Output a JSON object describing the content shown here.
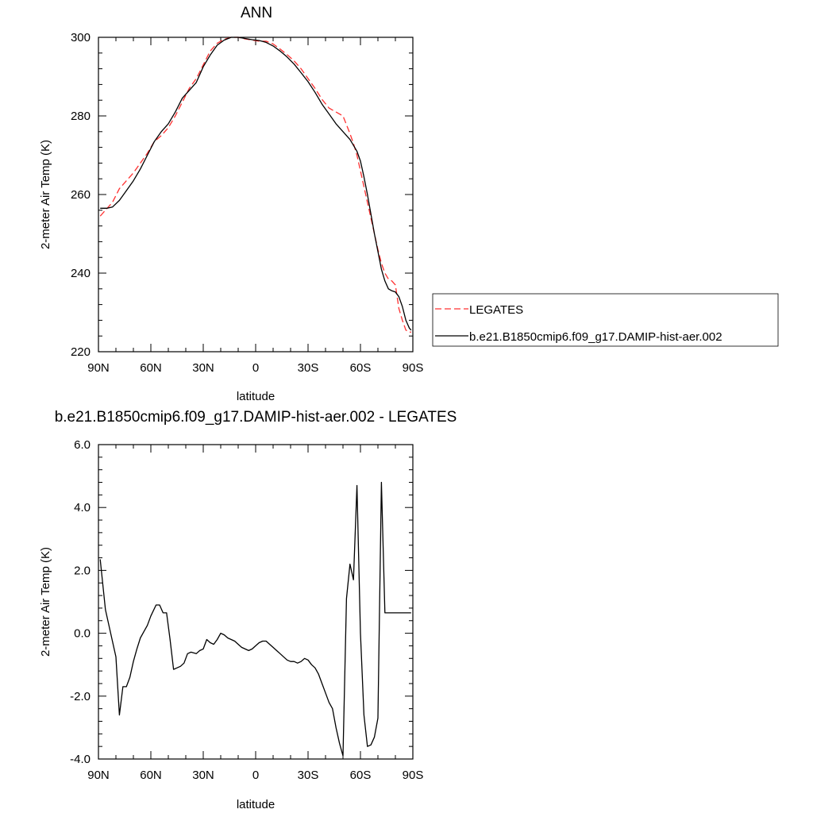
{
  "chart_data": [
    {
      "type": "line",
      "title": "ANN",
      "xlabel": "latitude",
      "ylabel": "2-meter Air Temp (K)",
      "xlim": [
        90,
        -90
      ],
      "ylim": [
        220,
        300
      ],
      "x_ticks": [
        {
          "value": 90,
          "label": "90N"
        },
        {
          "value": 60,
          "label": "60N"
        },
        {
          "value": 30,
          "label": "30N"
        },
        {
          "value": 0,
          "label": "0"
        },
        {
          "value": -30,
          "label": "30S"
        },
        {
          "value": -60,
          "label": "60S"
        },
        {
          "value": -90,
          "label": "90S"
        }
      ],
      "y_ticks": [
        {
          "value": 220,
          "label": "220"
        },
        {
          "value": 240,
          "label": "240"
        },
        {
          "value": 260,
          "label": "260"
        },
        {
          "value": 280,
          "label": "280"
        },
        {
          "value": 300,
          "label": "300"
        }
      ],
      "legend_position": "right",
      "series": [
        {
          "name": "LEGATES",
          "color": "#ff3030",
          "dash": "dashed",
          "x": [
            89,
            85,
            82,
            78,
            74,
            70,
            66,
            62,
            58,
            54,
            50,
            46,
            42,
            38,
            34,
            30,
            26,
            22,
            18,
            14,
            10,
            6,
            2,
            -2,
            -6,
            -10,
            -14,
            -18,
            -22,
            -26,
            -30,
            -34,
            -38,
            -42,
            -46,
            -50,
            -54,
            -56,
            -58,
            -60,
            -62,
            -64,
            -66,
            -68,
            -70,
            -72,
            -74,
            -76,
            -78,
            -80,
            -82,
            -84,
            -86,
            -88,
            -89
          ],
          "values": [
            254.5,
            256.5,
            258,
            261.5,
            263.5,
            265.5,
            268,
            270.5,
            273.5,
            275,
            277,
            280,
            283.5,
            287,
            289.5,
            293,
            296.5,
            298.5,
            299.5,
            300,
            300,
            299.6,
            299.3,
            299,
            299,
            298.3,
            297,
            295.6,
            294,
            292,
            289.5,
            287,
            284.2,
            282,
            281,
            280,
            275.5,
            273,
            270,
            266,
            262,
            258,
            254,
            250,
            246,
            242.5,
            240,
            238.5,
            238,
            237,
            231,
            228,
            225.5,
            225,
            225
          ]
        },
        {
          "name": "b.e21.B1850cmip6.f09_g17.DAMIP-hist-aer.002",
          "color": "#000000",
          "dash": "solid",
          "x": [
            89,
            85,
            82,
            78,
            74,
            70,
            66,
            62,
            58,
            54,
            50,
            46,
            42,
            38,
            34,
            30,
            26,
            22,
            18,
            14,
            10,
            6,
            2,
            -2,
            -6,
            -10,
            -14,
            -18,
            -22,
            -26,
            -30,
            -34,
            -38,
            -42,
            -46,
            -50,
            -54,
            -56,
            -58,
            -60,
            -62,
            -64,
            -66,
            -68,
            -70,
            -72,
            -74,
            -76,
            -78,
            -80,
            -82,
            -84,
            -86,
            -88,
            -89
          ],
          "values": [
            256.5,
            256.5,
            256.8,
            258.5,
            261,
            263.5,
            266.5,
            270,
            273.5,
            276,
            278,
            281,
            284.5,
            286.5,
            288.5,
            292.5,
            295.5,
            298,
            299.3,
            300,
            300,
            299.7,
            299.4,
            299.2,
            298.7,
            297.8,
            296.5,
            295,
            293.2,
            291,
            288.7,
            286,
            283,
            280.5,
            278,
            276,
            274,
            272.5,
            271,
            268.5,
            264.5,
            260,
            255,
            250,
            245.5,
            241,
            238,
            236,
            235.5,
            235.2,
            234,
            231.5,
            228,
            226,
            225.5
          ]
        }
      ]
    },
    {
      "type": "line",
      "title": "b.e21.B1850cmip6.f09_g17.DAMIP-hist-aer.002 - LEGATES",
      "xlabel": "latitude",
      "ylabel": "2-meter Air Temp (K)",
      "xlim": [
        90,
        -90
      ],
      "ylim": [
        -4,
        6
      ],
      "x_ticks": [
        {
          "value": 90,
          "label": "90N"
        },
        {
          "value": 60,
          "label": "60N"
        },
        {
          "value": 30,
          "label": "30N"
        },
        {
          "value": 0,
          "label": "0"
        },
        {
          "value": -30,
          "label": "30S"
        },
        {
          "value": -60,
          "label": "60S"
        },
        {
          "value": -90,
          "label": "90S"
        }
      ],
      "y_ticks": [
        {
          "value": -4,
          "label": "-4.0"
        },
        {
          "value": -2,
          "label": "-2.0"
        },
        {
          "value": 0,
          "label": "0.0"
        },
        {
          "value": 2,
          "label": "2.0"
        },
        {
          "value": 4,
          "label": "4.0"
        },
        {
          "value": 6,
          "label": "6.0"
        }
      ],
      "series": [
        {
          "color": "#000000",
          "dash": "solid",
          "x": [
            89,
            86,
            83,
            80,
            78,
            76,
            74,
            72,
            70,
            68,
            66,
            64,
            62,
            60,
            57,
            55,
            53,
            51,
            49,
            47,
            45,
            43,
            41,
            39,
            37,
            34,
            32,
            30,
            28,
            26,
            24,
            22,
            20,
            18,
            16,
            14,
            12,
            10,
            8,
            6,
            4,
            2,
            0,
            -2,
            -4,
            -6,
            -8,
            -10,
            -12,
            -14,
            -16,
            -18,
            -20,
            -22,
            -24,
            -26,
            -28,
            -30,
            -32,
            -34,
            -36,
            -38,
            -40,
            -42,
            -44,
            -46,
            -48,
            -50,
            -52,
            -54,
            -56,
            -58,
            -60,
            -62,
            -64,
            -66,
            -68,
            -70,
            -72,
            -74,
            -76,
            -78,
            -80,
            -82,
            -84,
            -86,
            -88,
            -89
          ],
          "values": [
            2.35,
            0.75,
            0.0,
            -0.75,
            -2.6,
            -1.7,
            -1.7,
            -1.4,
            -0.9,
            -0.5,
            -0.15,
            0.05,
            0.25,
            0.55,
            0.9,
            0.9,
            0.65,
            0.65,
            -0.2,
            -1.15,
            -1.1,
            -1.05,
            -0.95,
            -0.65,
            -0.6,
            -0.65,
            -0.55,
            -0.5,
            -0.2,
            -0.3,
            -0.35,
            -0.2,
            0.0,
            -0.05,
            -0.15,
            -0.2,
            -0.25,
            -0.35,
            -0.45,
            -0.5,
            -0.55,
            -0.5,
            -0.4,
            -0.3,
            -0.25,
            -0.25,
            -0.35,
            -0.45,
            -0.55,
            -0.65,
            -0.75,
            -0.85,
            -0.9,
            -0.9,
            -0.95,
            -0.9,
            -0.8,
            -0.85,
            -1.0,
            -1.1,
            -1.3,
            -1.6,
            -1.9,
            -2.2,
            -2.4,
            -3.0,
            -3.5,
            -3.9,
            1.1,
            2.2,
            1.7,
            4.7,
            0.0,
            -2.6,
            -3.6,
            -3.55,
            -3.3,
            -2.7,
            4.8,
            0.65,
            0.65,
            0.65,
            0.65,
            0.65,
            0.65,
            0.65,
            0.65,
            0.65
          ]
        }
      ]
    }
  ],
  "legend": {
    "items": [
      {
        "label": "LEGATES",
        "color": "#ff3030",
        "dash": "dashed"
      },
      {
        "label": "b.e21.B1850cmip6.f09_g17.DAMIP-hist-aer.002",
        "color": "#000000",
        "dash": "solid"
      }
    ]
  }
}
